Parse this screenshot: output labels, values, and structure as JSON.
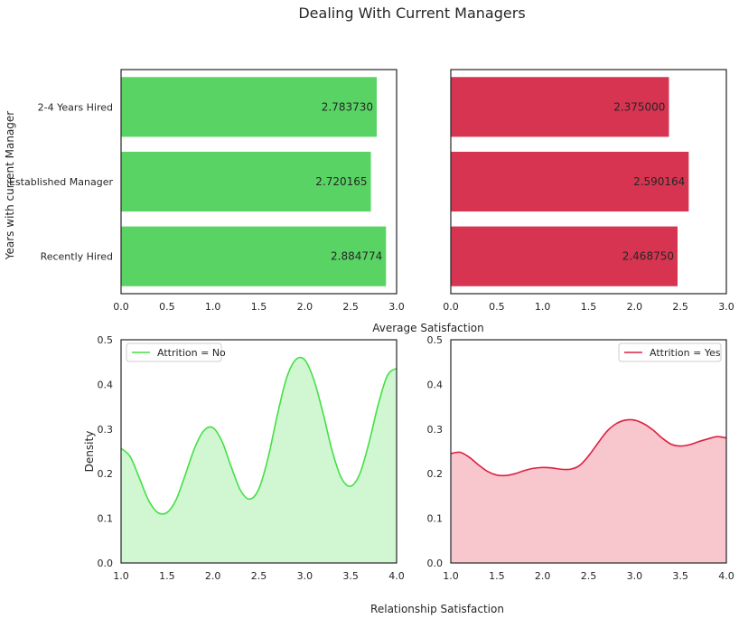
{
  "suptitle": "Dealing With Current Managers",
  "shared_labels": {
    "bar_xlabel": "Average Satisfaction",
    "bar_ylabel": "Years with current Manager",
    "kde_xlabel": "Relationship Satisfaction",
    "kde_ylabel": "Density"
  },
  "colors": {
    "no": "#59d464",
    "yes": "#d63450",
    "no_line": "#44e044",
    "yes_line": "#dc2040",
    "no_fill": "#d0f7d2",
    "yes_fill": "#f8c6cd"
  },
  "chart_data": [
    {
      "id": "bar-no",
      "type": "bar",
      "orientation": "horizontal",
      "categories": [
        "2-4 Years Hired",
        "Established Manager",
        "Recently Hired"
      ],
      "values": [
        2.78373,
        2.720165,
        2.884774
      ],
      "value_labels": [
        "2.783730",
        "2.720165",
        "2.884774"
      ],
      "xlim": [
        0,
        3.0
      ],
      "xticks": [
        "0.0",
        "0.5",
        "1.0",
        "1.5",
        "2.0",
        "2.5",
        "3.0"
      ],
      "ylabel": "Years with current Manager",
      "color": "#59d464"
    },
    {
      "id": "bar-yes",
      "type": "bar",
      "orientation": "horizontal",
      "categories": [
        "2-4 Years Hired",
        "Established Manager",
        "Recently Hired"
      ],
      "values": [
        2.375,
        2.590164,
        2.46875
      ],
      "value_labels": [
        "2.375000",
        "2.590164",
        "2.468750"
      ],
      "xlim": [
        0,
        3.0
      ],
      "xticks": [
        "0.0",
        "0.5",
        "1.0",
        "1.5",
        "2.0",
        "2.5",
        "3.0"
      ],
      "color": "#d63450"
    },
    {
      "id": "kde-no",
      "type": "area",
      "series": [
        {
          "name": "Attrition = No",
          "x": [
            1.0,
            1.1,
            1.2,
            1.3,
            1.4,
            1.5,
            1.6,
            1.7,
            1.8,
            1.9,
            2.0,
            2.1,
            2.2,
            2.3,
            2.4,
            2.5,
            2.6,
            2.7,
            2.8,
            2.9,
            3.0,
            3.1,
            3.2,
            3.3,
            3.4,
            3.5,
            3.6,
            3.7,
            3.8,
            3.9,
            4.0
          ],
          "y": [
            0.257,
            0.238,
            0.19,
            0.14,
            0.113,
            0.113,
            0.142,
            0.198,
            0.257,
            0.296,
            0.303,
            0.272,
            0.215,
            0.163,
            0.143,
            0.166,
            0.235,
            0.33,
            0.413,
            0.455,
            0.455,
            0.41,
            0.335,
            0.25,
            0.19,
            0.172,
            0.2,
            0.27,
            0.355,
            0.42,
            0.436
          ]
        }
      ],
      "xlim": [
        1.0,
        4.0
      ],
      "ylim": [
        0.0,
        0.5
      ],
      "xticks": [
        "1.0",
        "1.5",
        "2.0",
        "2.5",
        "3.0",
        "3.5",
        "4.0"
      ],
      "yticks": [
        "0.0",
        "0.1",
        "0.2",
        "0.3",
        "0.4",
        "0.5"
      ],
      "ylabel": "Density",
      "legend": "top-left",
      "color": "#44e044"
    },
    {
      "id": "kde-yes",
      "type": "area",
      "series": [
        {
          "name": "Attrition = Yes",
          "x": [
            1.0,
            1.1,
            1.2,
            1.3,
            1.4,
            1.5,
            1.6,
            1.7,
            1.8,
            1.9,
            2.0,
            2.1,
            2.2,
            2.3,
            2.4,
            2.5,
            2.6,
            2.7,
            2.8,
            2.9,
            3.0,
            3.1,
            3.2,
            3.3,
            3.4,
            3.5,
            3.6,
            3.7,
            3.8,
            3.9,
            4.0
          ],
          "y": [
            0.245,
            0.248,
            0.237,
            0.22,
            0.205,
            0.197,
            0.196,
            0.2,
            0.207,
            0.212,
            0.214,
            0.213,
            0.21,
            0.21,
            0.218,
            0.24,
            0.268,
            0.295,
            0.312,
            0.32,
            0.32,
            0.312,
            0.298,
            0.28,
            0.266,
            0.262,
            0.265,
            0.272,
            0.278,
            0.283,
            0.28
          ]
        }
      ],
      "xlim": [
        1.0,
        4.0
      ],
      "ylim": [
        0.0,
        0.5
      ],
      "xticks": [
        "1.0",
        "1.5",
        "2.0",
        "2.5",
        "3.0",
        "3.5",
        "4.0"
      ],
      "yticks": [
        "0.0",
        "0.1",
        "0.2",
        "0.3",
        "0.4",
        "0.5"
      ],
      "legend": "top-right",
      "color": "#dc2040"
    }
  ]
}
